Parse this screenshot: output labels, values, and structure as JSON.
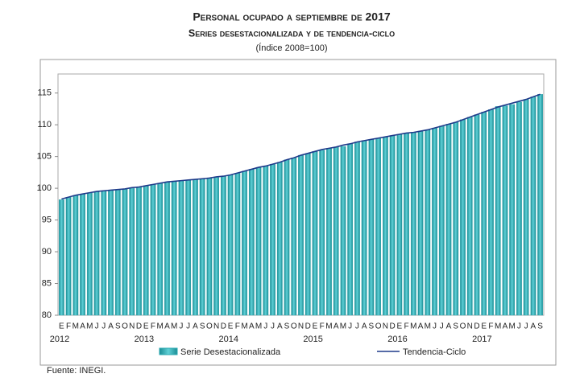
{
  "chart_data": {
    "type": "bar-line",
    "title": "Personal ocupado a septiembre de 2017",
    "subtitle": "Series desestacionalizada y de tendencia-ciclo",
    "unit": "(Índice 2008=100)",
    "source": "Fuente: INEGI.",
    "categories": [
      "E",
      "F",
      "M",
      "A",
      "M",
      "J",
      "J",
      "A",
      "S",
      "O",
      "N",
      "D",
      "E",
      "F",
      "M",
      "A",
      "M",
      "J",
      "J",
      "A",
      "S",
      "O",
      "N",
      "D",
      "E",
      "F",
      "M",
      "A",
      "M",
      "J",
      "J",
      "A",
      "S",
      "O",
      "N",
      "D",
      "E",
      "F",
      "M",
      "A",
      "M",
      "J",
      "J",
      "A",
      "S",
      "O",
      "N",
      "D",
      "E",
      "F",
      "M",
      "A",
      "M",
      "J",
      "J",
      "A",
      "S",
      "O",
      "N",
      "D",
      "E",
      "F",
      "M",
      "A",
      "M",
      "J",
      "J",
      "A",
      "S"
    ],
    "years": [
      "2012",
      "2013",
      "2014",
      "2015",
      "2016",
      "2017"
    ],
    "series": [
      {
        "name": "Serie Desestacionalizada",
        "color": "#2aa9b1",
        "values": [
          98.2,
          98.6,
          98.9,
          99.1,
          99.3,
          99.5,
          99.6,
          99.7,
          99.8,
          99.9,
          100.0,
          100.2,
          100.4,
          100.6,
          100.8,
          101.0,
          101.1,
          101.2,
          101.3,
          101.4,
          101.5,
          101.6,
          101.7,
          101.9,
          102.1,
          102.4,
          102.7,
          103.0,
          103.3,
          103.5,
          103.8,
          104.1,
          104.5,
          104.8,
          105.2,
          105.5,
          105.8,
          106.0,
          106.3,
          106.5,
          106.6,
          107.0,
          107.3,
          107.5,
          107.7,
          107.9,
          108.1,
          108.3,
          108.5,
          108.7,
          108.8,
          109.0,
          109.2,
          109.5,
          109.8,
          110.1,
          110.4,
          110.8,
          111.2,
          111.6,
          112.0,
          112.4,
          112.9,
          113.0,
          113.2,
          113.6,
          114.0,
          114.4,
          114.8
        ]
      },
      {
        "name": "Tendencia-Ciclo",
        "color": "#1f3a8a",
        "values": [
          98.3,
          98.6,
          98.9,
          99.1,
          99.3,
          99.5,
          99.6,
          99.7,
          99.8,
          99.9,
          100.1,
          100.2,
          100.4,
          100.6,
          100.8,
          101.0,
          101.1,
          101.2,
          101.3,
          101.4,
          101.5,
          101.6,
          101.8,
          101.9,
          102.1,
          102.4,
          102.7,
          103.0,
          103.3,
          103.5,
          103.8,
          104.1,
          104.5,
          104.8,
          105.2,
          105.5,
          105.8,
          106.1,
          106.3,
          106.5,
          106.8,
          107.0,
          107.3,
          107.5,
          107.7,
          107.9,
          108.1,
          108.3,
          108.5,
          108.7,
          108.8,
          109.0,
          109.2,
          109.5,
          109.8,
          110.1,
          110.4,
          110.8,
          111.2,
          111.6,
          112.0,
          112.4,
          112.8,
          113.1,
          113.4,
          113.7,
          114.0,
          114.4,
          114.8
        ]
      }
    ],
    "ylim": [
      80,
      118
    ],
    "yticks": [
      80,
      85,
      90,
      95,
      100,
      105,
      110,
      115
    ]
  }
}
